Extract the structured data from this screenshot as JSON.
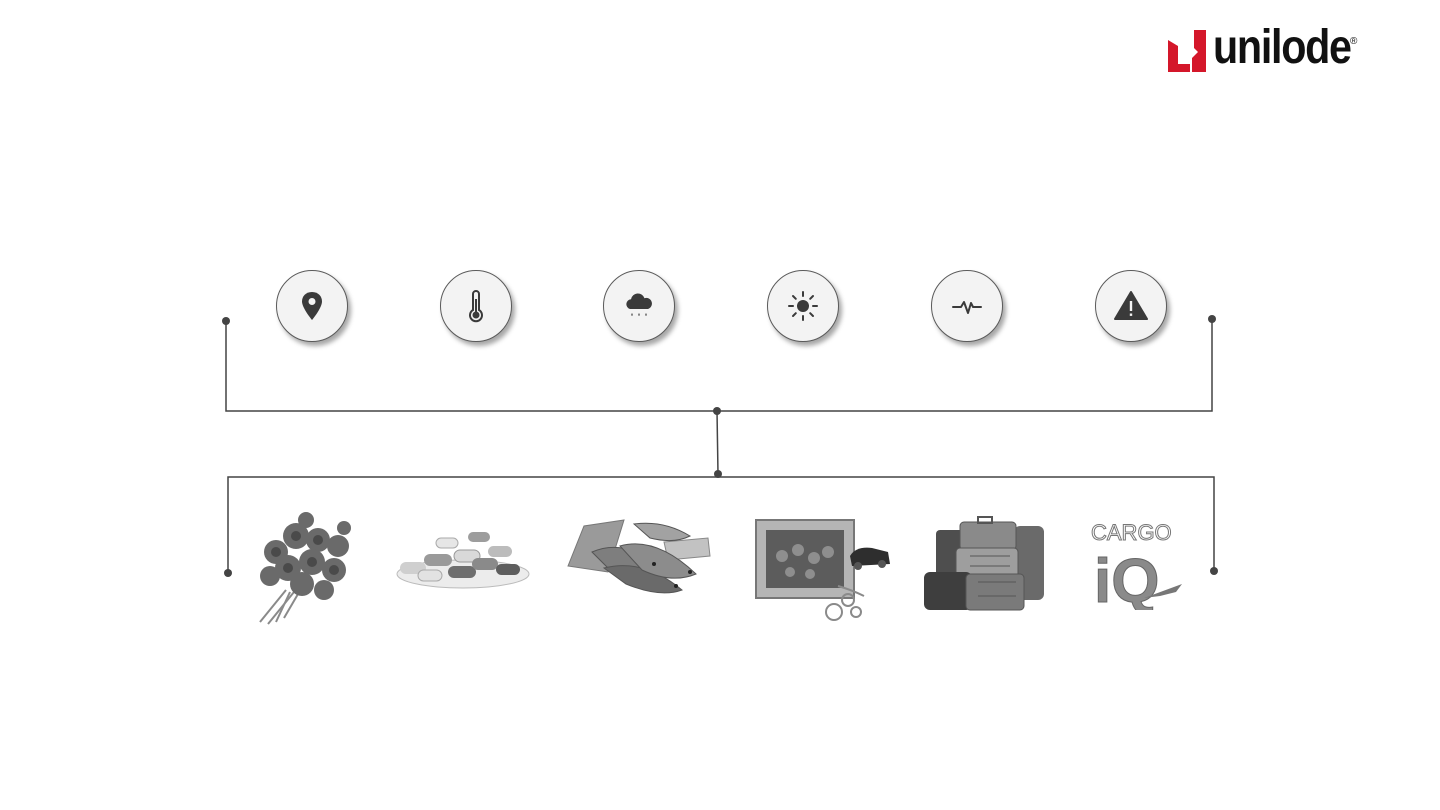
{
  "brand": {
    "name": "unilode",
    "registered_mark": "®",
    "mark_color": "#d4172a",
    "text_color": "#111111"
  },
  "sensors": [
    {
      "icon": "location-pin-icon"
    },
    {
      "icon": "thermometer-icon"
    },
    {
      "icon": "rain-cloud-icon"
    },
    {
      "icon": "sun-icon"
    },
    {
      "icon": "heartbeat-icon"
    },
    {
      "icon": "warning-icon"
    }
  ],
  "cargo": [
    {
      "icon": "roses-bouquet-icon"
    },
    {
      "icon": "pills-icon"
    },
    {
      "icon": "fresh-fish-icon"
    },
    {
      "icon": "framed-painting-jewelry-icon"
    },
    {
      "icon": "luggage-icon"
    },
    {
      "icon": "cargo-iq-logo"
    }
  ],
  "cargo_iq_logo": {
    "line1": "CARGO",
    "line2": "iQ"
  },
  "colors": {
    "line": "#444444",
    "icon": "#3a3a3a",
    "circle_fill": "#f3f3f3",
    "photo_gray": "#7a7a7a"
  }
}
